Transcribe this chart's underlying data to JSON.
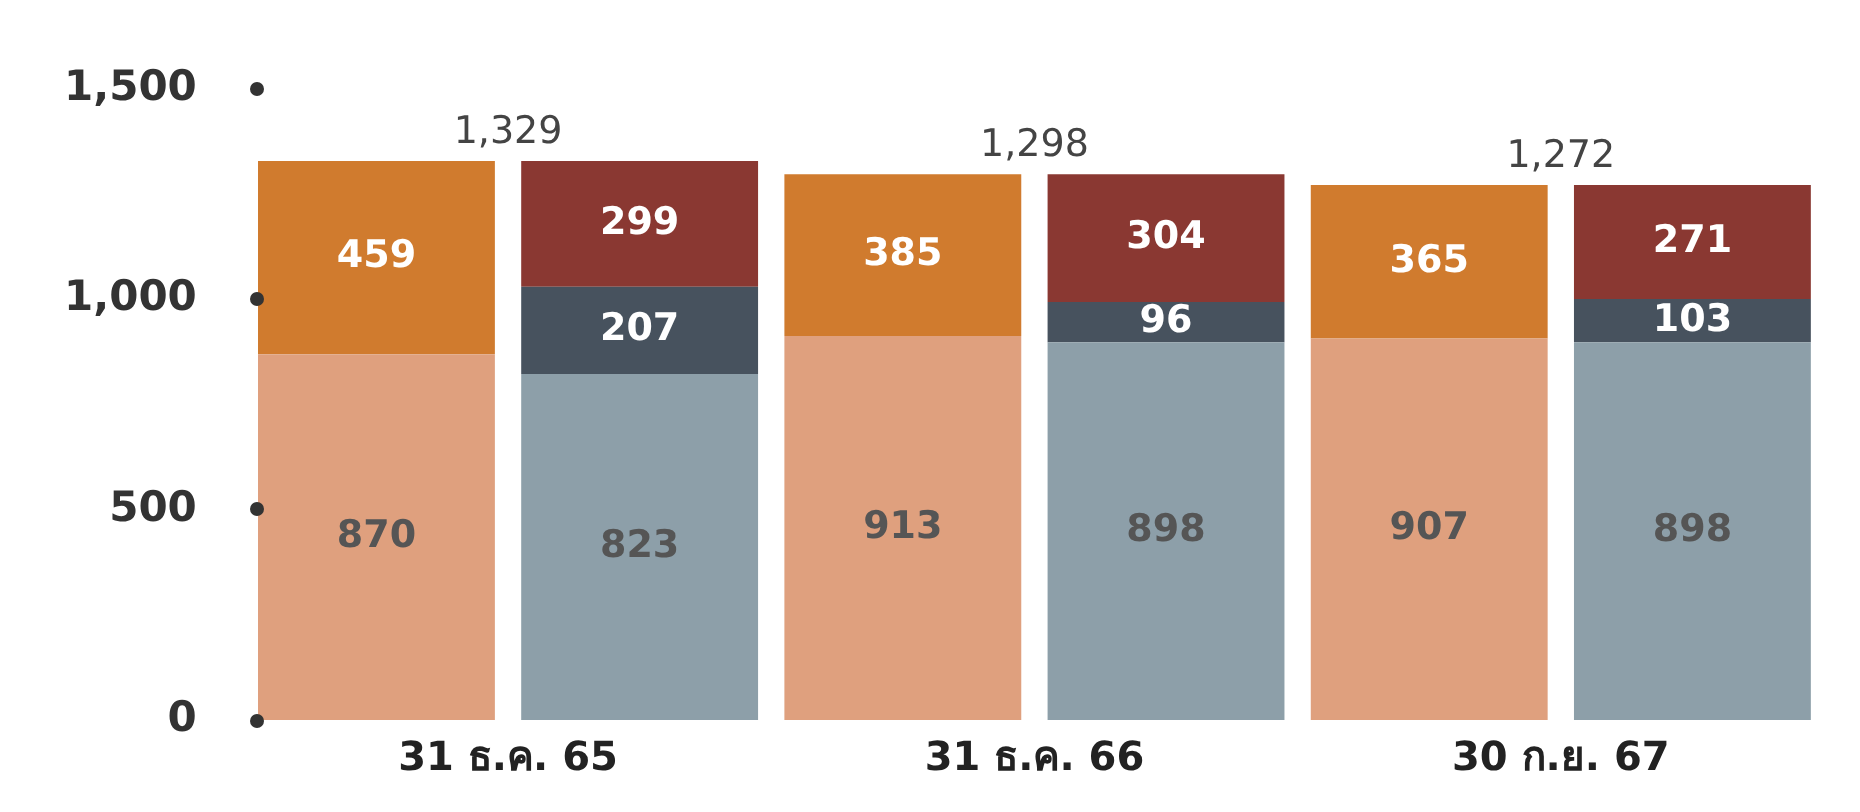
{
  "chart_data": {
    "type": "bar",
    "stacked": true,
    "categories": [
      "31 ธ.ค. 65",
      null,
      "31 ธ.ค. 66",
      null,
      "30 ก.ย. 67",
      null
    ],
    "series": [
      {
        "colors": [
          "#dfa07e",
          "#8d9fa9",
          "#dfa07e",
          "#8d9fa9",
          "#dfa07e",
          "#8d9fa9"
        ],
        "values": [
          870,
          823,
          913,
          898,
          907,
          898
        ]
      },
      {
        "colors": [
          "#d07b2e",
          "#47525e",
          "#d07b2e",
          "#47525e",
          "#d07b2e",
          "#47525e"
        ],
        "values": [
          459,
          207,
          385,
          96,
          365,
          103
        ]
      },
      {
        "color": "#8a3832",
        "values": [
          null,
          299,
          null,
          304,
          null,
          271
        ]
      }
    ],
    "ylim": [
      0,
      1500
    ],
    "yticks": [
      0,
      500,
      {
        "value": 1000,
        "label": "1,000"
      },
      {
        "value": 1500,
        "label": "1,500"
      }
    ],
    "grid": false,
    "legend": false,
    "data_labels": true,
    "totals": [
      "1,329",
      null,
      "1,298",
      null,
      "1,272",
      null
    ]
  }
}
